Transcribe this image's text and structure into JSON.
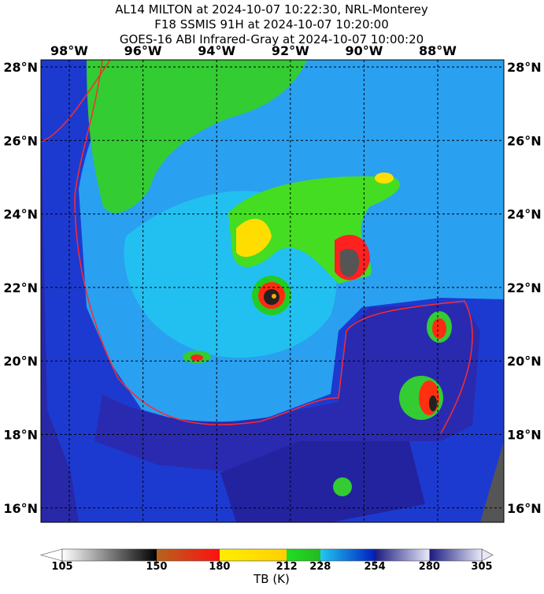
{
  "title": [
    "AL14 MILTON at 2024-10-07 10:22:30, NRL-Monterey",
    "F18 SSMIS 91H at 2024-10-07 10:20:00",
    "GOES-16 ABI Infrared-Gray at 2024-10-07 10:00:20"
  ],
  "map": {
    "lon_labels": [
      "98°W",
      "96°W",
      "94°W",
      "92°W",
      "90°W",
      "88°W"
    ],
    "lat_labels": [
      "28°N",
      "26°N",
      "24°N",
      "22°N",
      "20°N",
      "18°N",
      "16°N"
    ]
  },
  "colorbar": {
    "label": "TB (K)",
    "lim": [
      105,
      305
    ],
    "ticks": [
      105,
      150,
      180,
      212,
      228,
      254,
      280,
      305
    ],
    "colors": [
      [
        "#ffffff",
        "#000000"
      ],
      [
        "#b5651d",
        "#ff1010"
      ],
      [
        "#ffee00",
        "#ffd000"
      ],
      [
        "#22dd22",
        "#22bb22"
      ],
      [
        "#22c8f0",
        "#0020c0"
      ],
      [
        "#1a1a80",
        "#e8e8f8"
      ]
    ]
  }
}
